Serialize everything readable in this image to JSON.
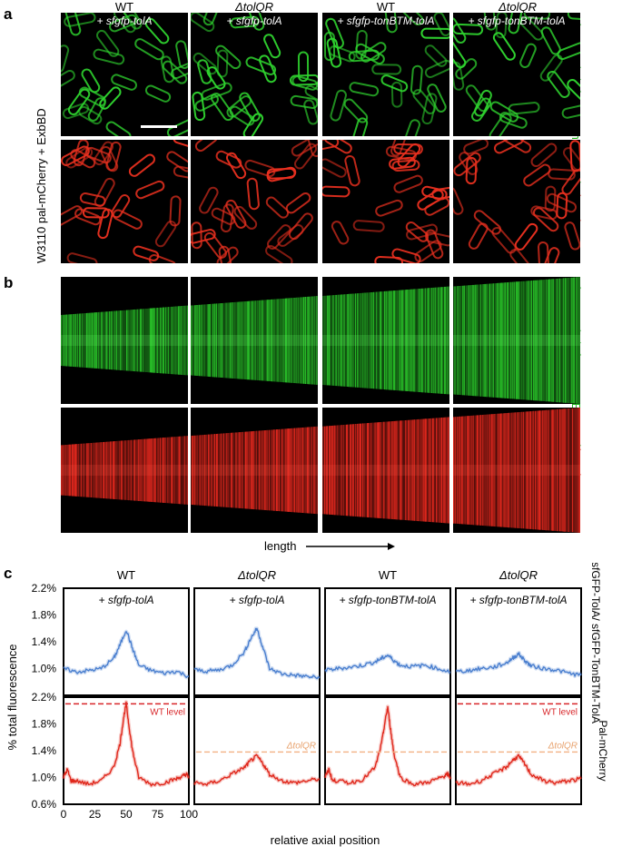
{
  "panel_labels": {
    "a": "a",
    "b": "b",
    "c": "c"
  },
  "columns": [
    {
      "strain": "WT",
      "plasmid": "+ sfgfp-tolA"
    },
    {
      "strain": "ΔtolQR",
      "plasmid": "+ sfgfp-tolA"
    },
    {
      "strain": "WT",
      "plasmid": "+ sfgfp-tonBTM-tolA"
    },
    {
      "strain": "ΔtolQR",
      "plasmid": "+ sfgfp-tonBTM-tolA"
    }
  ],
  "left_label": "W3110 pal-mCherry + ExbBD",
  "green_channel_label": "sfGFP-TolA/ sfGFP-TonBTM-TolA",
  "red_channel_label": "Pal-mCherry",
  "kymo_axis_label": "length",
  "colors": {
    "green": "#1fb31f",
    "red": "#e0281c",
    "blue": "#4a7fcf",
    "dash_red": "#d8262a",
    "dash_orange": "#f2b183"
  },
  "chart_data": {
    "type": "line",
    "ylabel": "% total fluorescence",
    "xlabel": "relative axial position",
    "x_ticks": [
      "0",
      "25",
      "50",
      "75",
      "100"
    ],
    "top_y_ticks": [
      "2.2%",
      "1.8%",
      "1.4%",
      "1.0%"
    ],
    "bottom_y_ticks": [
      "2.2%",
      "1.8%",
      "1.4%",
      "1.0%",
      "0.6%"
    ],
    "top_ylim": [
      0.6,
      2.2
    ],
    "bottom_ylim": [
      0.6,
      2.2
    ],
    "right_labels": {
      "top": "sfGFP-TolA/ sfGFP-TonBTM-TolA",
      "bottom": "Pal-mCherry"
    },
    "wt_level_label": "WT level",
    "tolqr_level_label": "ΔtolQR",
    "wt_level": 2.1,
    "tolqr_level": 1.38,
    "panels_top": [
      {
        "x": [
          0,
          10,
          20,
          30,
          40,
          45,
          50,
          55,
          60,
          70,
          80,
          90,
          100
        ],
        "y": [
          1.0,
          0.95,
          0.97,
          1.0,
          1.15,
          1.35,
          1.58,
          1.3,
          1.05,
          0.97,
          0.93,
          0.96,
          0.88
        ]
      },
      {
        "x": [
          0,
          10,
          20,
          30,
          40,
          45,
          50,
          55,
          60,
          70,
          80,
          90,
          100
        ],
        "y": [
          0.98,
          0.96,
          0.98,
          1.05,
          1.25,
          1.45,
          1.6,
          1.3,
          1.0,
          0.92,
          0.9,
          0.88,
          0.86
        ]
      },
      {
        "x": [
          0,
          10,
          20,
          30,
          40,
          45,
          50,
          55,
          60,
          70,
          80,
          90,
          100
        ],
        "y": [
          0.97,
          1.0,
          1.02,
          1.05,
          1.1,
          1.15,
          1.2,
          1.12,
          1.05,
          1.03,
          1.05,
          1.0,
          0.95
        ]
      },
      {
        "x": [
          0,
          10,
          20,
          30,
          40,
          45,
          50,
          55,
          60,
          70,
          80,
          90,
          100
        ],
        "y": [
          0.95,
          0.97,
          1.0,
          1.02,
          1.08,
          1.15,
          1.22,
          1.12,
          1.04,
          1.0,
          0.98,
          0.93,
          0.9
        ]
      }
    ],
    "panels_bottom": [
      {
        "x": [
          0,
          3,
          6,
          10,
          20,
          30,
          40,
          45,
          48,
          50,
          52,
          55,
          60,
          70,
          80,
          90,
          95,
          98,
          100
        ],
        "y": [
          1.0,
          1.12,
          0.95,
          0.95,
          0.9,
          0.95,
          1.15,
          1.5,
          1.9,
          2.1,
          1.8,
          1.4,
          1.0,
          0.9,
          0.92,
          0.98,
          1.02,
          1.05,
          1.0
        ]
      },
      {
        "x": [
          0,
          10,
          20,
          30,
          40,
          45,
          50,
          55,
          60,
          70,
          80,
          90,
          100
        ],
        "y": [
          0.92,
          0.9,
          0.95,
          1.05,
          1.15,
          1.25,
          1.32,
          1.2,
          1.05,
          0.95,
          0.92,
          0.95,
          0.98
        ]
      },
      {
        "x": [
          0,
          3,
          6,
          10,
          20,
          30,
          40,
          45,
          48,
          50,
          52,
          55,
          60,
          70,
          80,
          90,
          95,
          98,
          100
        ],
        "y": [
          1.0,
          1.12,
          0.95,
          0.95,
          0.92,
          0.97,
          1.15,
          1.5,
          1.85,
          2.05,
          1.75,
          1.35,
          1.0,
          0.9,
          0.92,
          0.98,
          1.02,
          1.05,
          1.0
        ]
      },
      {
        "x": [
          0,
          10,
          20,
          30,
          40,
          45,
          50,
          55,
          60,
          70,
          80,
          90,
          100
        ],
        "y": [
          0.92,
          0.9,
          0.95,
          1.05,
          1.15,
          1.25,
          1.32,
          1.2,
          1.05,
          0.95,
          0.92,
          0.95,
          0.98
        ]
      }
    ]
  }
}
